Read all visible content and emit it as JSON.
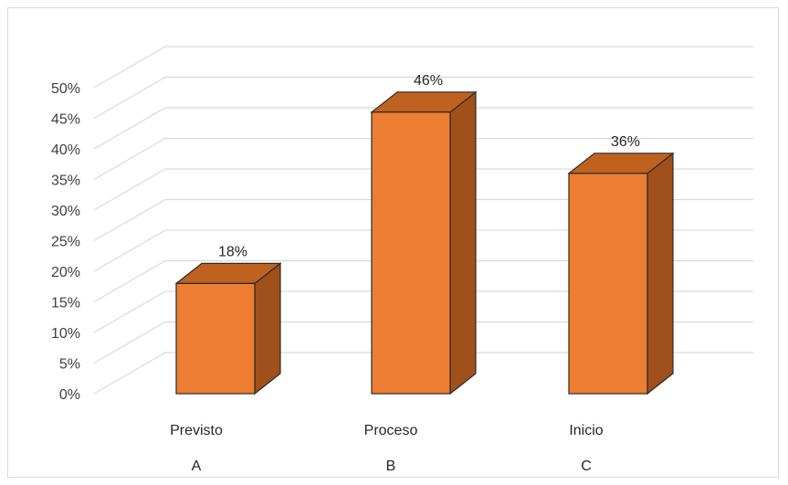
{
  "chart_data": {
    "type": "bar",
    "style": "3d-column",
    "categories": [
      {
        "label": "Previsto",
        "sublabel": "A"
      },
      {
        "label": "Proceso",
        "sublabel": "B"
      },
      {
        "label": "Inicio",
        "sublabel": "C"
      }
    ],
    "values": [
      18,
      46,
      36
    ],
    "value_labels": [
      "18%",
      "46%",
      "36%"
    ],
    "y_ticks": [
      "0%",
      "5%",
      "10%",
      "15%",
      "20%",
      "25%",
      "30%",
      "35%",
      "40%",
      "45%",
      "50%"
    ],
    "ylim": [
      0,
      50
    ],
    "y_unit": "%",
    "grid": true,
    "legend": "none",
    "colors": {
      "bar_front": "#ED7D31",
      "bar_top": "#C0621F",
      "bar_side": "#A0501A",
      "bar_outline": "#2a2a2a",
      "gridline": "#d9d9d9"
    }
  }
}
